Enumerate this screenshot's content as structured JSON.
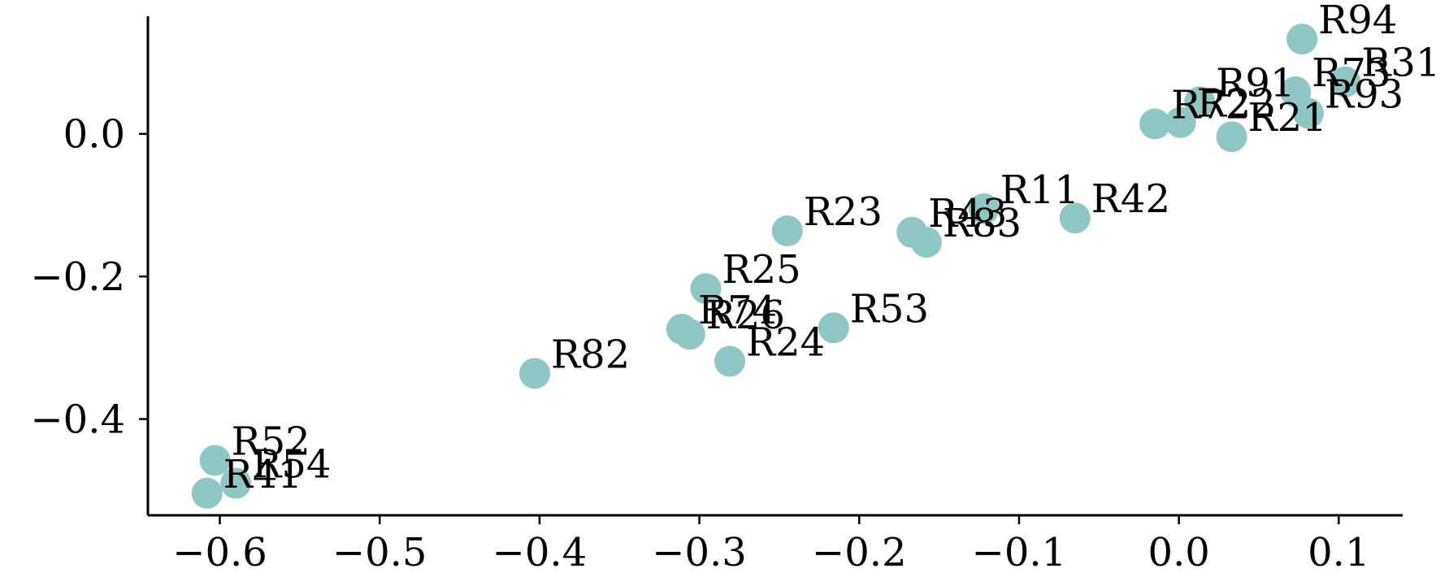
{
  "chart_data": {
    "type": "scatter",
    "title": "",
    "xlabel": "",
    "ylabel": "",
    "xlim": [
      -0.645,
      0.14
    ],
    "ylim": [
      -0.535,
      0.165
    ],
    "x_ticks": [
      {
        "value": -0.6,
        "label": "−0.6"
      },
      {
        "value": -0.5,
        "label": "−0.5"
      },
      {
        "value": -0.4,
        "label": "−0.4"
      },
      {
        "value": -0.3,
        "label": "−0.3"
      },
      {
        "value": -0.2,
        "label": "−0.2"
      },
      {
        "value": -0.1,
        "label": "−0.1"
      },
      {
        "value": 0.0,
        "label": "0.0"
      },
      {
        "value": 0.1,
        "label": "0.1"
      }
    ],
    "y_ticks": [
      {
        "value": 0.0,
        "label": "0.0"
      },
      {
        "value": -0.2,
        "label": "−0.2"
      },
      {
        "value": -0.4,
        "label": "−0.4"
      }
    ],
    "grid": false,
    "legend": "none",
    "marker_color": "#8ec7c4",
    "points": [
      {
        "label": "R94",
        "x": 0.077,
        "y": 0.133
      },
      {
        "label": "R31",
        "x": 0.104,
        "y": 0.073
      },
      {
        "label": "R73",
        "x": 0.073,
        "y": 0.059
      },
      {
        "label": "R93",
        "x": 0.081,
        "y": 0.029
      },
      {
        "label": "R91",
        "x": 0.013,
        "y": 0.045
      },
      {
        "label": "R22",
        "x": 0.001,
        "y": 0.016
      },
      {
        "label": "R72",
        "x": -0.015,
        "y": 0.014
      },
      {
        "label": "R21",
        "x": 0.033,
        "y": -0.004
      },
      {
        "label": "R11",
        "x": -0.122,
        "y": -0.105
      },
      {
        "label": "R42",
        "x": -0.065,
        "y": -0.118
      },
      {
        "label": "R43",
        "x": -0.167,
        "y": -0.138
      },
      {
        "label": "R83",
        "x": -0.158,
        "y": -0.152
      },
      {
        "label": "R23",
        "x": -0.245,
        "y": -0.136
      },
      {
        "label": "R25",
        "x": -0.296,
        "y": -0.217
      },
      {
        "label": "R74",
        "x": -0.311,
        "y": -0.274
      },
      {
        "label": "R26",
        "x": -0.306,
        "y": -0.281
      },
      {
        "label": "R53",
        "x": -0.216,
        "y": -0.272
      },
      {
        "label": "R24",
        "x": -0.281,
        "y": -0.319
      },
      {
        "label": "R82",
        "x": -0.403,
        "y": -0.336
      },
      {
        "label": "R52",
        "x": -0.603,
        "y": -0.458
      },
      {
        "label": "R54",
        "x": -0.59,
        "y": -0.49
      },
      {
        "label": "R41",
        "x": -0.608,
        "y": -0.504
      }
    ]
  }
}
